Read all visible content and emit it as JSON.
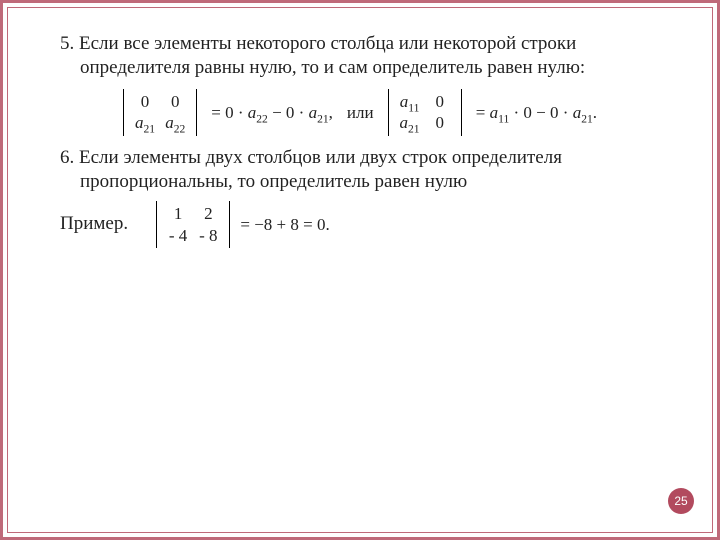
{
  "frame": {
    "outer_border_color": "#bf6a7a",
    "inner_border_color": "#bf6a7a",
    "background": "#ffffff"
  },
  "page_number": "25",
  "badge_bg": "#b24a5e",
  "item5": {
    "text": "5. Если все элементы некоторого столбца или некоторой строки определителя равны нулю, то и сам определитель равен нулю:"
  },
  "formula1": {
    "detA": {
      "r1c1": "0",
      "r1c2": "0",
      "r2c1_var": "a",
      "r2c1_sub": "21",
      "r2c2_var": "a",
      "r2c2_sub": "22"
    },
    "rhsA_pre": "= 0 · ",
    "rhsA_a22_var": "a",
    "rhsA_a22_sub": "22",
    "rhsA_mid": " − 0 · ",
    "rhsA_a21_var": "a",
    "rhsA_a21_sub": "21",
    "rhsA_post": ",",
    "or_word": "или",
    "detB": {
      "r1c1_var": "a",
      "r1c1_sub": "11",
      "r1c2": "0",
      "r2c1_var": "a",
      "r2c1_sub": "21",
      "r2c2": "0"
    },
    "rhsB_pre": "= ",
    "rhsB_a11_var": "a",
    "rhsB_a11_sub": "11",
    "rhsB_mid": " · 0 − 0 · ",
    "rhsB_a21_var": "a",
    "rhsB_a21_sub": "21",
    "rhsB_post": "."
  },
  "item6": {
    "text": "6. Если элементы двух столбцов или двух строк определителя пропорциональны, то    определитель равен нулю"
  },
  "example": {
    "label": "Пример.",
    "det": {
      "r1c1": "1",
      "r1c2": "2",
      "r2c1": "- 4",
      "r2c2": "- 8"
    },
    "rhs": "= −8 + 8 = 0."
  }
}
